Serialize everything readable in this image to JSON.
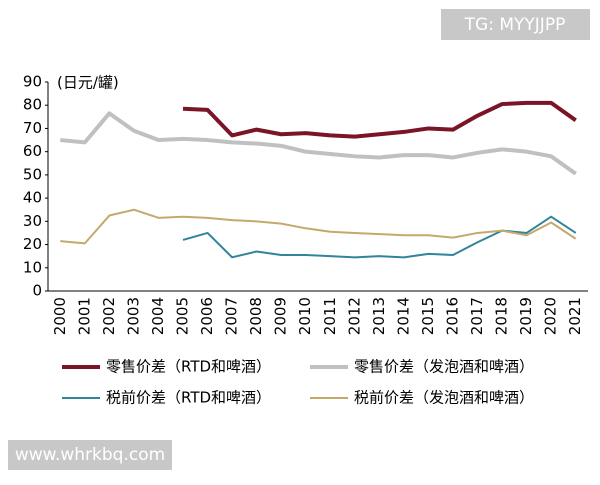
{
  "chart_data": {
    "type": "line",
    "y_axis_label": "(日元/罐)",
    "categories": [
      "2000",
      "2001",
      "2002",
      "2003",
      "2004",
      "2005",
      "2006",
      "2007",
      "2008",
      "2009",
      "2010",
      "2011",
      "2012",
      "2013",
      "2014",
      "2015",
      "2016",
      "2017",
      "2018",
      "2019",
      "2020",
      "2021"
    ],
    "series": [
      {
        "name": "零售价差（RTD和啤酒）",
        "color": "#7b1426",
        "values": [
          null,
          null,
          null,
          null,
          null,
          78.5,
          78,
          67,
          69.5,
          67.5,
          68,
          67,
          66.5,
          67.5,
          68.5,
          70,
          69.5,
          75.5,
          80.5,
          81,
          81,
          73.5
        ]
      },
      {
        "name": "零售价差（发泡酒和啤酒）",
        "color": "#c0c0c0",
        "values": [
          65,
          64,
          76.5,
          69,
          65,
          65.5,
          65,
          64,
          63.5,
          62.5,
          60,
          59,
          58,
          57.5,
          58.5,
          58.5,
          57.5,
          59.5,
          61,
          60,
          58,
          50.5
        ]
      },
      {
        "name": "税前价差（RTD和啤酒）",
        "color": "#31849b",
        "values": [
          null,
          null,
          null,
          null,
          null,
          22,
          25,
          14.5,
          17,
          15.5,
          15.5,
          15,
          14.5,
          15,
          14.5,
          16,
          15.5,
          21,
          26,
          25,
          32,
          25
        ]
      },
      {
        "name": "税前价差（发泡酒和啤酒）",
        "color": "#c4a96b",
        "values": [
          21.5,
          20.5,
          32.5,
          35,
          31.5,
          32,
          31.5,
          30.5,
          30,
          29,
          27,
          25.5,
          25,
          24.5,
          24,
          24,
          23,
          25,
          26,
          24,
          29.5,
          22.5
        ]
      }
    ],
    "ylim": [
      0,
      90
    ],
    "yticks": [
      0,
      10,
      20,
      30,
      40,
      50,
      60,
      70,
      80,
      90
    ],
    "grid": false
  },
  "watermarks": [
    "TG: MYYJJPP",
    "www.whrkbq.com"
  ]
}
